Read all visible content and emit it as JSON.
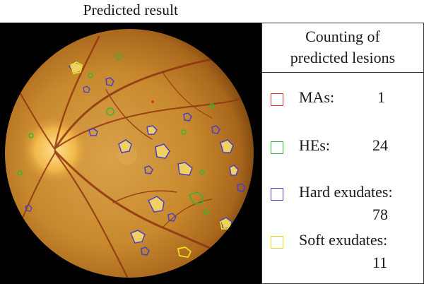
{
  "figure": {
    "caption": "Predicted result"
  },
  "legend": {
    "title_line1": "Counting of",
    "title_line2": "predicted lesions",
    "items": [
      {
        "label": "MAs:",
        "count": "1",
        "color": "#e03030"
      },
      {
        "label": "HEs:",
        "count": "24",
        "color": "#2fb82f"
      },
      {
        "label": "Hard exudates:",
        "count": "78",
        "color": "#4a3fc8"
      },
      {
        "label": "Soft exudates:",
        "count": "11",
        "color": "#e8e020"
      }
    ]
  },
  "colors": {
    "fundus_background": "#c98a2e",
    "optic_disc": "#f2c15a",
    "vessels": "#9a3a12"
  }
}
